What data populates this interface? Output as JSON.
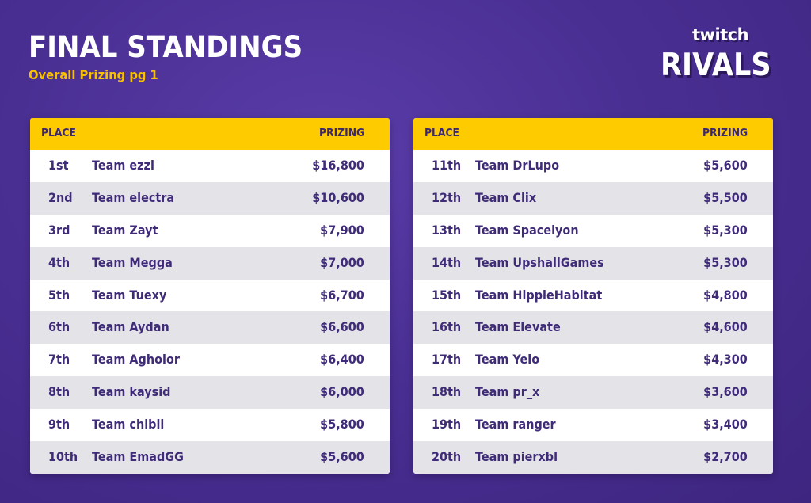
{
  "header": {
    "title": "FINAL STANDINGS",
    "subtitle": "Overall Prizing pg 1"
  },
  "logo": {
    "top": "twitch",
    "main": "RIVALS"
  },
  "colors": {
    "background": "#4a2f93",
    "header_yellow": "#fdcb00",
    "text_purple": "#3f2b78",
    "subtitle_yellow": "#f8c200",
    "row_alt": "#e4e4e8"
  },
  "tables": [
    {
      "columns": {
        "place": "PLACE",
        "prizing": "PRIZING"
      },
      "rows": [
        {
          "place": "1st",
          "team": "Team ezzi",
          "prize": "$16,800"
        },
        {
          "place": "2nd",
          "team": "Team electra",
          "prize": "$10,600"
        },
        {
          "place": "3rd",
          "team": "Team Zayt",
          "prize": "$7,900"
        },
        {
          "place": "4th",
          "team": "Team Megga",
          "prize": "$7,000"
        },
        {
          "place": "5th",
          "team": "Team Tuexy",
          "prize": "$6,700"
        },
        {
          "place": "6th",
          "team": "Team Aydan",
          "prize": "$6,600"
        },
        {
          "place": "7th",
          "team": "Team Agholor",
          "prize": "$6,400"
        },
        {
          "place": "8th",
          "team": "Team kaysid",
          "prize": "$6,000"
        },
        {
          "place": "9th",
          "team": "Team chibii",
          "prize": "$5,800"
        },
        {
          "place": "10th",
          "team": "Team EmadGG",
          "prize": "$5,600"
        }
      ]
    },
    {
      "columns": {
        "place": "PLACE",
        "prizing": "PRIZING"
      },
      "rows": [
        {
          "place": "11th",
          "team": "Team DrLupo",
          "prize": "$5,600"
        },
        {
          "place": "12th",
          "team": "Team Clix",
          "prize": "$5,500"
        },
        {
          "place": "13th",
          "team": "Team Spacelyon",
          "prize": "$5,300"
        },
        {
          "place": "14th",
          "team": "Team UpshallGames",
          "prize": "$5,300"
        },
        {
          "place": "15th",
          "team": "Team HippieHabitat",
          "prize": "$4,800"
        },
        {
          "place": "16th",
          "team": "Team Elevate",
          "prize": "$4,600"
        },
        {
          "place": "17th",
          "team": "Team Yelo",
          "prize": "$4,300"
        },
        {
          "place": "18th",
          "team": "Team pr_x",
          "prize": "$3,600"
        },
        {
          "place": "19th",
          "team": "Team ranger",
          "prize": "$3,400"
        },
        {
          "place": "20th",
          "team": "Team pierxbl",
          "prize": "$2,700"
        }
      ]
    }
  ]
}
